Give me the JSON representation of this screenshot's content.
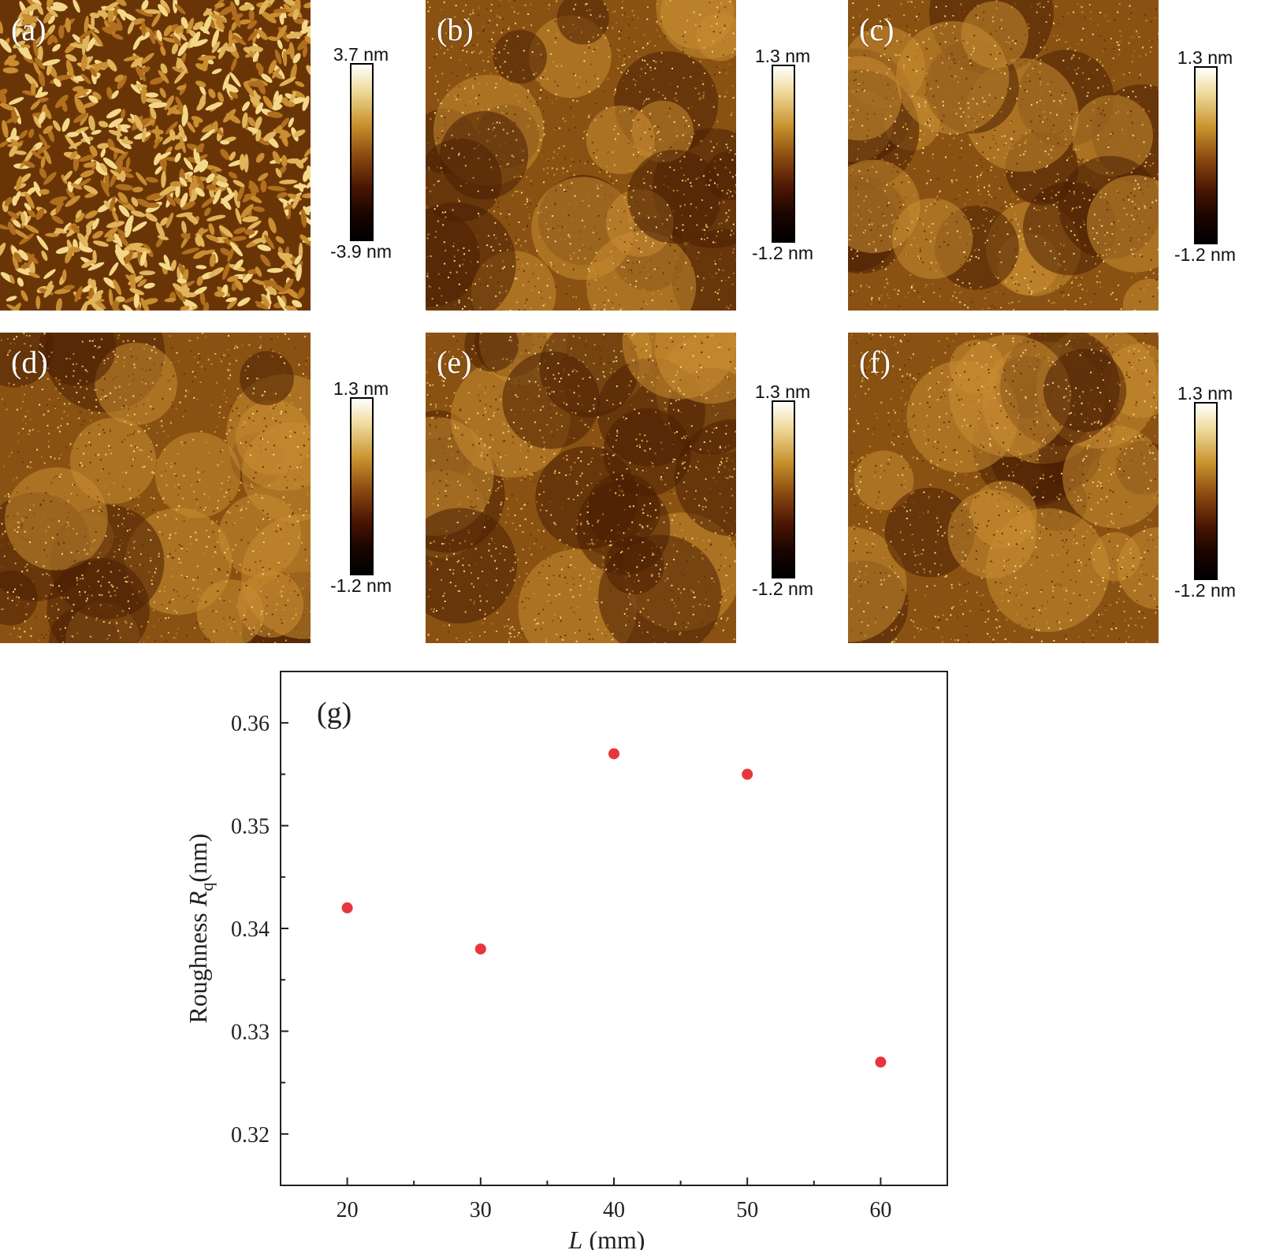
{
  "panels": [
    {
      "label": "(a)",
      "scale_max": "3.7 nm",
      "scale_min": "-3.9 nm"
    },
    {
      "label": "(b)",
      "scale_max": "1.3 nm",
      "scale_min": "-1.2 nm"
    },
    {
      "label": "(c)",
      "scale_max": "1.3 nm",
      "scale_min": "-1.2 nm"
    },
    {
      "label": "(d)",
      "scale_max": "1.3 nm",
      "scale_min": "-1.2 nm"
    },
    {
      "label": "(e)",
      "scale_max": "1.3 nm",
      "scale_min": "-1.2 nm"
    },
    {
      "label": "(f)",
      "scale_max": "1.3 nm",
      "scale_min": "-1.2 nm"
    }
  ],
  "chart_data": {
    "type": "scatter",
    "panel_label": "(g)",
    "xlabel_var": "L",
    "xlabel_unit": " (mm)",
    "ylabel_prefix": "Roughness ",
    "ylabel_var": "R",
    "ylabel_sub": "q",
    "ylabel_unit": "(nm)",
    "xlim": [
      15,
      65
    ],
    "ylim": [
      0.315,
      0.365
    ],
    "xticks": [
      20,
      30,
      40,
      50,
      60
    ],
    "yticks": [
      0.32,
      0.33,
      0.34,
      0.35,
      0.36
    ],
    "xtick_labels": [
      "20",
      "30",
      "40",
      "50",
      "60"
    ],
    "ytick_labels": [
      "0.32",
      "0.33",
      "0.34",
      "0.35",
      "0.36"
    ],
    "grid": false,
    "marker_color": "#e8363c",
    "series": [
      {
        "x": [
          20,
          30,
          40,
          50,
          60
        ],
        "y": [
          0.342,
          0.338,
          0.357,
          0.355,
          0.327
        ]
      }
    ]
  }
}
